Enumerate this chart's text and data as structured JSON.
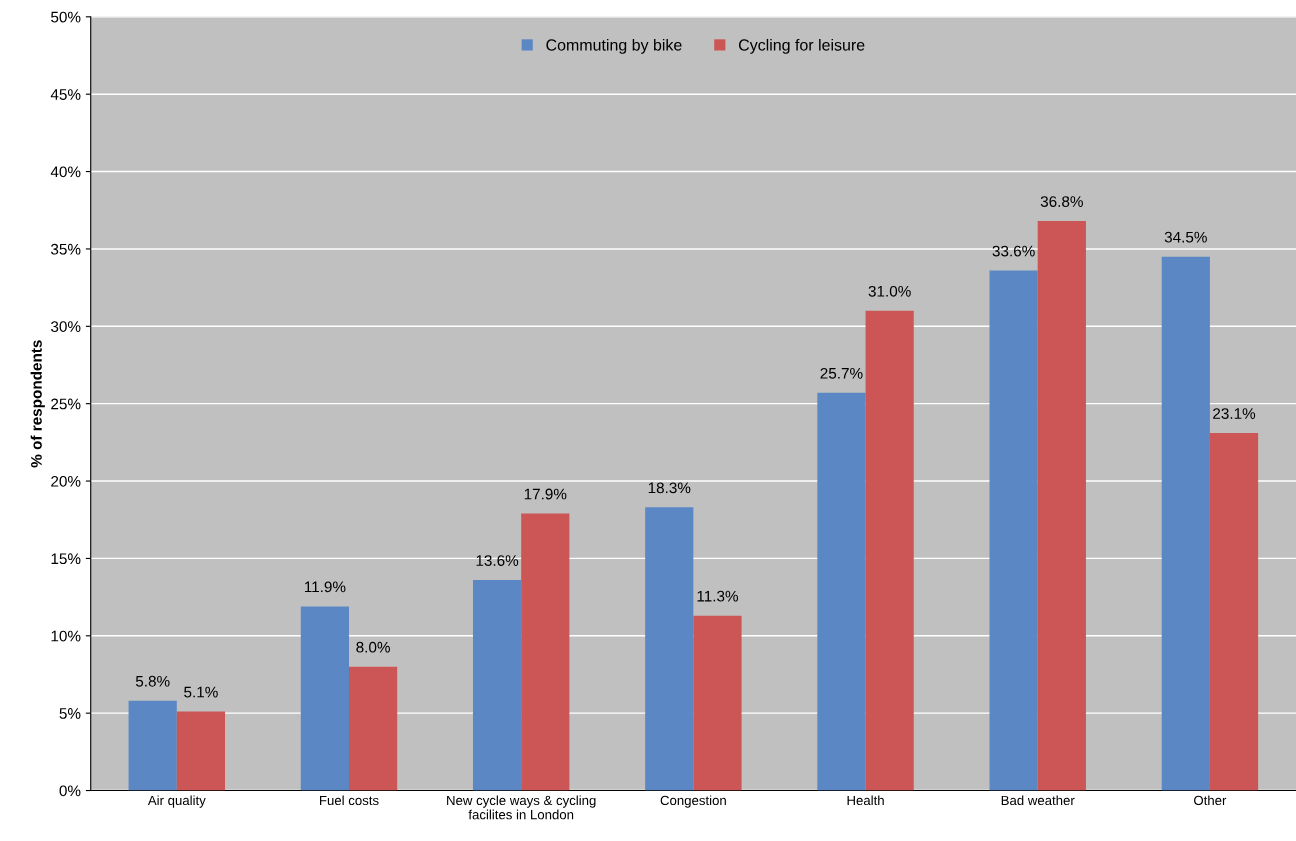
{
  "chart_data": {
    "type": "bar",
    "ylabel": "% of respondents",
    "categories": [
      "Air quality",
      "Fuel costs",
      "New cycle ways & cycling\nfacilites in London",
      "Congestion",
      "Health",
      "Bad weather",
      "Other"
    ],
    "series": [
      {
        "name": "Commuting by bike",
        "color": "#5b87c4",
        "values": [
          5.8,
          11.9,
          13.6,
          18.3,
          25.7,
          33.6,
          34.5
        ],
        "value_labels": [
          "5.8%",
          "11.9%",
          "13.6%",
          "18.3%",
          "25.7%",
          "33.6%",
          "34.5%"
        ]
      },
      {
        "name": "Cycling for leisure",
        "color": "#cc5555",
        "values": [
          5.1,
          8.0,
          17.9,
          11.3,
          31.0,
          36.8,
          23.1
        ],
        "value_labels": [
          "5.1%",
          "8.0%",
          "17.9%",
          "11.3%",
          "31.0%",
          "36.8%",
          "23.1%"
        ]
      }
    ],
    "ylim": [
      0,
      50
    ],
    "yticks": [
      {
        "value": 0,
        "label": "0%"
      },
      {
        "value": 5,
        "label": "5%"
      },
      {
        "value": 10,
        "label": "10%"
      },
      {
        "value": 15,
        "label": "15%"
      },
      {
        "value": 20,
        "label": "20%"
      },
      {
        "value": 25,
        "label": "25%"
      },
      {
        "value": 30,
        "label": "30%"
      },
      {
        "value": 35,
        "label": "35%"
      },
      {
        "value": 40,
        "label": "40%"
      },
      {
        "value": 45,
        "label": "45%"
      },
      {
        "value": 50,
        "label": "50%"
      }
    ],
    "grid": "y",
    "legend": "top"
  }
}
